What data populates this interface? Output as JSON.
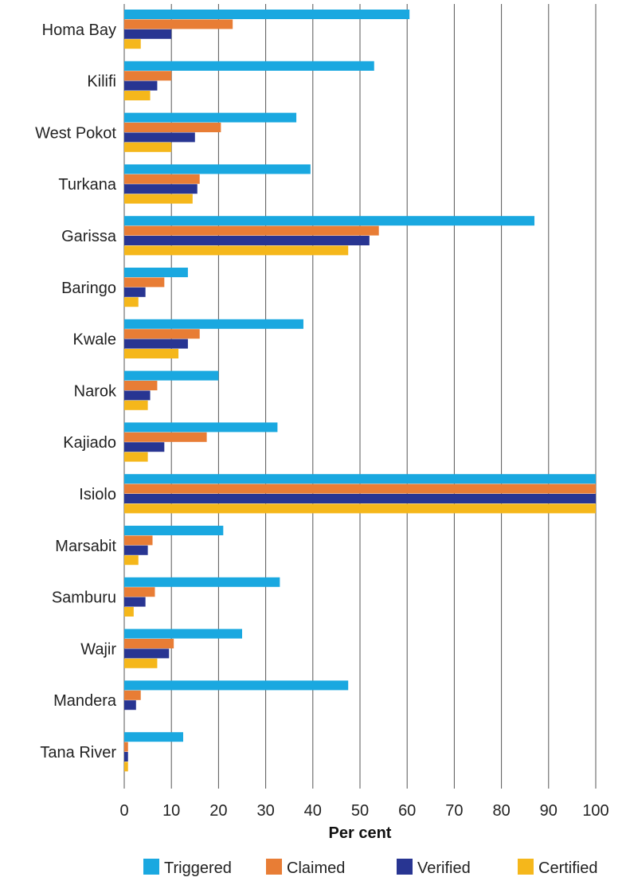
{
  "chart_data": {
    "type": "bar",
    "orientation": "horizontal",
    "categories": [
      "Homa Bay",
      "Kilifi",
      "West Pokot",
      "Turkana",
      "Garissa",
      "Baringo",
      "Kwale",
      "Narok",
      "Kajiado",
      "Isiolo",
      "Marsabit",
      "Samburu",
      "Wajir",
      "Mandera",
      "Tana River"
    ],
    "series": [
      {
        "name": "Triggered",
        "color": "#1aa8e0",
        "values": [
          60.5,
          53,
          36.5,
          39.5,
          87,
          13.5,
          38,
          20,
          32.5,
          100,
          21,
          33,
          25,
          47.5,
          12.5
        ]
      },
      {
        "name": "Claimed",
        "color": "#e87d35",
        "values": [
          23,
          10,
          20.5,
          16,
          54,
          8.5,
          16,
          7,
          17.5,
          100,
          6,
          6.5,
          10.5,
          3.5,
          0.8
        ]
      },
      {
        "name": "Verified",
        "color": "#283592",
        "values": [
          10,
          7,
          15,
          15.5,
          52,
          4.5,
          13.5,
          5.5,
          8.5,
          100,
          5,
          4.5,
          9.5,
          2.5,
          0.8
        ]
      },
      {
        "name": "Certified",
        "color": "#f5b71b",
        "values": [
          3.5,
          5.5,
          10,
          14.5,
          47.5,
          3,
          11.5,
          5,
          5,
          100,
          3,
          2,
          7,
          0,
          0.8
        ]
      }
    ],
    "xlabel": "Per cent",
    "ylabel": "",
    "xlim": [
      0,
      100
    ],
    "xticks": [
      "0",
      "10",
      "20",
      "30",
      "40",
      "50",
      "60",
      "70",
      "80",
      "90",
      "100"
    ],
    "grid": "vertical",
    "legend": "bottom"
  }
}
